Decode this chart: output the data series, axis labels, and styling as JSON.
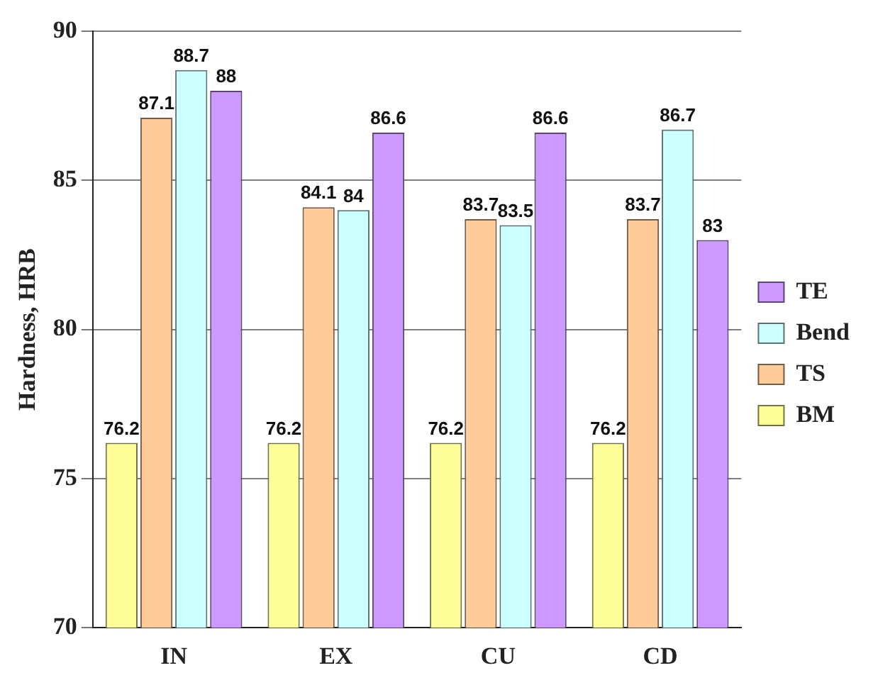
{
  "chart_data": {
    "type": "bar",
    "ylabel": "Hardness, HRB",
    "categories": [
      "IN",
      "EX",
      "CU",
      "CD"
    ],
    "series": [
      {
        "name": "BM",
        "color": "#ffff99",
        "values": [
          76.2,
          76.2,
          76.2,
          76.2
        ]
      },
      {
        "name": "TS",
        "color": "#ffcc99",
        "values": [
          87.1,
          84.1,
          83.7,
          83.7
        ]
      },
      {
        "name": "Bend",
        "color": "#ccffff",
        "values": [
          88.7,
          84,
          83.5,
          86.7
        ]
      },
      {
        "name": "TE",
        "color": "#cc99ff",
        "values": [
          88,
          86.6,
          86.6,
          83
        ]
      }
    ],
    "ylim": [
      70,
      90
    ],
    "yticks": [
      70,
      75,
      80,
      85,
      90
    ],
    "grid": "y",
    "legend": "right",
    "data_labels": true
  }
}
